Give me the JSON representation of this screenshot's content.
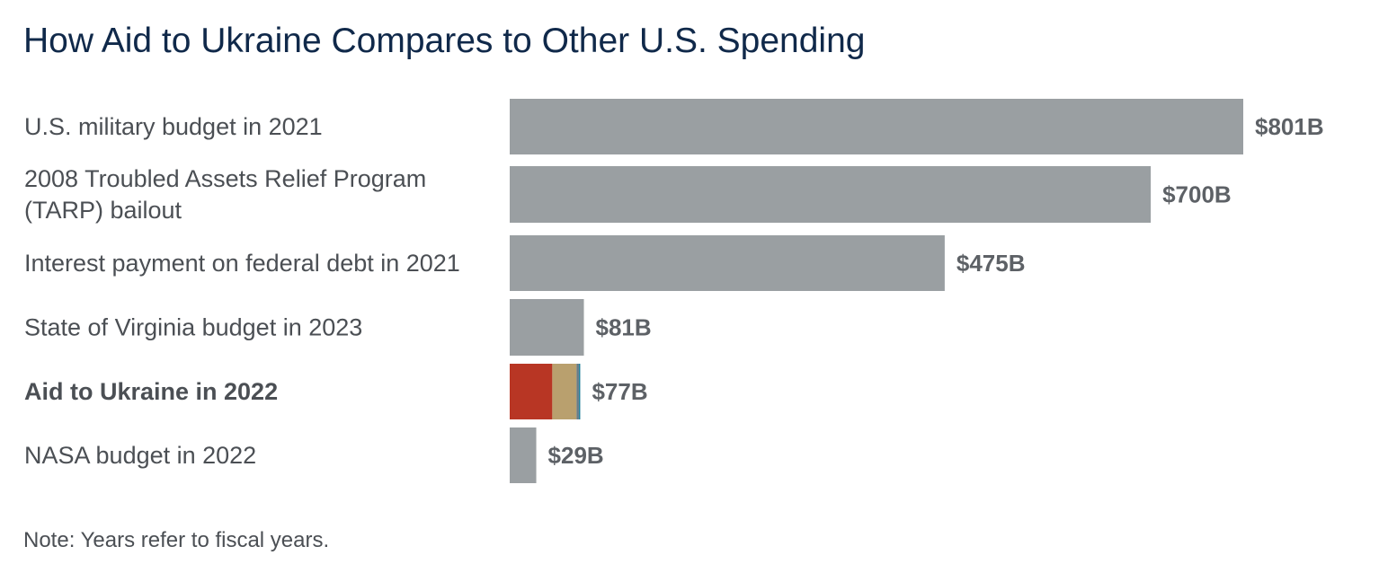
{
  "chart_data": {
    "type": "bar",
    "orientation": "horizontal",
    "title": "How Aid to Ukraine Compares to Other U.S. Spending",
    "note": "Note: Years refer to fiscal years.",
    "categories": [
      "U.S. military budget in 2021",
      "2008 Troubled Assets Relief Program (TARP) bailout",
      "Interest payment on federal debt in 2021",
      "State of Virginia budget in 2023",
      "Aid to Ukraine in 2022",
      "NASA budget in 2022"
    ],
    "category_lines": [
      [
        "U.S. military budget in 2021"
      ],
      [
        "2008 Troubled Assets Relief Program",
        "(TARP) bailout"
      ],
      [
        "Interest payment on federal debt in 2021"
      ],
      [
        "State of Virginia budget in 2023"
      ],
      [
        "Aid to Ukraine in 2022"
      ],
      [
        "NASA budget in 2022"
      ]
    ],
    "values": [
      801,
      700,
      475,
      81,
      77,
      29
    ],
    "value_labels": [
      "$801B",
      "$700B",
      "$475B",
      "$81B",
      "$77B",
      "$29B"
    ],
    "units": "billions of dollars",
    "highlight_index": 4,
    "highlight_segments": [
      {
        "value": 46.5,
        "color": "#b83624"
      },
      {
        "value": 26.5,
        "color": "#b9a06e"
      },
      {
        "value": 2.5,
        "color": "#6a7b86"
      },
      {
        "value": 1.5,
        "color": "#1f7f9a"
      }
    ],
    "xlim": [
      0,
      801
    ],
    "grid": false,
    "legend": "none",
    "colors": {
      "bar": "#9a9fa2",
      "title": "#10294a",
      "label": "#4b4f54",
      "value": "#5d6166"
    }
  }
}
